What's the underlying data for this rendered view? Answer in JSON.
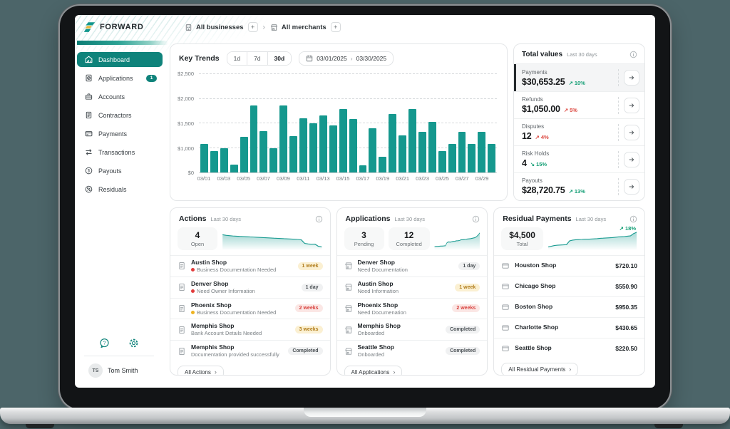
{
  "window": {
    "background": "#4c6569"
  },
  "brand": {
    "name": "FORWARD"
  },
  "breadcrumb": {
    "businesses": "All businesses",
    "merchants": "All merchants",
    "add": "+",
    "separator": "›"
  },
  "sidebar": {
    "items": [
      {
        "label": "Dashboard"
      },
      {
        "label": "Applications",
        "badge": "1"
      },
      {
        "label": "Accounts"
      },
      {
        "label": "Contractors"
      },
      {
        "label": "Payments"
      },
      {
        "label": "Transactions"
      },
      {
        "label": "Payouts"
      },
      {
        "label": "Residuals"
      }
    ],
    "user": {
      "initials": "TS",
      "name": "Tom Smith"
    }
  },
  "key_trends": {
    "title": "Key Trends",
    "range_options": [
      "1d",
      "7d",
      "30d"
    ],
    "active_range": "30d",
    "date_from": "03/01/2025",
    "date_separator": "›",
    "date_to": "03/30/2025"
  },
  "chart_data": {
    "type": "bar",
    "title": "Key Trends",
    "x": [
      "03/01",
      "03/02",
      "03/03",
      "03/04",
      "03/05",
      "03/06",
      "03/07",
      "03/08",
      "03/09",
      "03/10",
      "03/11",
      "03/12",
      "03/13",
      "03/14",
      "03/15",
      "03/16",
      "03/17",
      "03/18",
      "03/19",
      "03/20",
      "03/21",
      "03/22",
      "03/23",
      "03/24",
      "03/25",
      "03/26",
      "03/27",
      "03/28",
      "03/29",
      "03/30"
    ],
    "values": [
      1085,
      890,
      1000,
      320,
      1240,
      1860,
      1350,
      1000,
      1860,
      1250,
      1610,
      1500,
      1660,
      1460,
      1790,
      1600,
      300,
      1400,
      660,
      1690,
      1260,
      1800,
      1330,
      1530,
      890,
      1090,
      1330,
      1090,
      1330,
      1090
    ],
    "ylim": [
      0,
      2500
    ],
    "yticks": [
      {
        "label": "$0",
        "value": 0,
        "pos": 0
      },
      {
        "label": "$1,000",
        "value": 1000,
        "pos": 0.245
      },
      {
        "label": "$1,500",
        "value": 1500,
        "pos": 0.497
      },
      {
        "label": "$2,000",
        "value": 2000,
        "pos": 0.748
      },
      {
        "label": "$2,500",
        "value": 2500,
        "pos": 1
      }
    ],
    "xtick_every": 2,
    "bar_color": "#15988e",
    "grid": "dashed-horizontal",
    "legend": "none"
  },
  "total_values": {
    "title": "Total values",
    "period": "Last 30 days",
    "rows": [
      {
        "label": "Payments",
        "value": "$30,653.25",
        "arrow": "↗",
        "pct": "10%",
        "tone": "green",
        "state": "selected"
      },
      {
        "label": "Refunds",
        "value": "$1,050.00",
        "arrow": "↗",
        "pct": "5%",
        "tone": "red"
      },
      {
        "label": "Disputes",
        "value": "12",
        "arrow": "↗",
        "pct": "4%",
        "tone": "red"
      },
      {
        "label": "Risk Holds",
        "value": "4",
        "arrow": "↘",
        "pct": "15%",
        "tone": "green"
      },
      {
        "label": "Payouts",
        "value": "$28,720.75",
        "arrow": "↗",
        "pct": "13%",
        "tone": "green"
      }
    ]
  },
  "actions": {
    "title": "Actions",
    "period": "Last 30 days",
    "stat": {
      "value": "4",
      "label": "Open"
    },
    "sparkline": [
      78,
      75,
      73,
      71,
      70,
      69,
      68,
      67,
      66,
      65,
      64,
      63,
      62,
      61,
      60,
      59,
      58,
      57,
      56,
      55,
      54,
      53,
      52,
      50,
      30,
      27,
      25,
      26,
      14,
      10
    ],
    "items": [
      {
        "title": "Austin Shop",
        "subtitle": "Business Documentation Needed",
        "dot": "red",
        "badge": "1 week",
        "badge_tone": "amber"
      },
      {
        "title": "Denver Shop",
        "subtitle": "Need Owner Information",
        "dot": "red",
        "badge": "1 day",
        "badge_tone": "gray"
      },
      {
        "title": "Phoenix Shop",
        "subtitle": "Business Documentation Needed",
        "dot": "amber",
        "badge": "2 weeks",
        "badge_tone": "rose"
      },
      {
        "title": "Memphis Shop",
        "subtitle": "Bank Account Details Needed",
        "badge": "3 weeks",
        "badge_tone": "amber"
      },
      {
        "title": "Memphis Shop",
        "subtitle": "Documentation provided successfully",
        "badge": "Completed",
        "badge_tone": "gray"
      }
    ],
    "footer": "All Actions",
    "footer_chevron": "›"
  },
  "applications": {
    "title": "Applications",
    "period": "Last 30 days",
    "stats": [
      {
        "value": "3",
        "label": "Pending"
      },
      {
        "value": "12",
        "label": "Completed"
      }
    ],
    "sparkline": [
      12,
      13,
      13,
      14,
      15,
      15,
      16,
      17,
      34,
      38,
      37,
      39,
      41,
      42,
      44,
      45,
      46,
      50,
      50,
      51,
      52,
      54,
      55,
      56,
      58,
      60,
      62,
      68,
      76,
      88
    ],
    "items": [
      {
        "title": "Denver Shop",
        "subtitle": "Need Documentation",
        "badge": "1 day",
        "badge_tone": "gray"
      },
      {
        "title": "Austin Shop",
        "subtitle": "Need Information",
        "badge": "1 week",
        "badge_tone": "amber"
      },
      {
        "title": "Phoenix Shop",
        "subtitle": "Need Documenation",
        "badge": "2 weeks",
        "badge_tone": "rose"
      },
      {
        "title": "Memphis Shop",
        "subtitle": "Onboarded",
        "badge": "Completed",
        "badge_tone": "gray"
      },
      {
        "title": "Seattle Shop",
        "subtitle": "Onboarded",
        "badge": "Completed",
        "badge_tone": "gray"
      }
    ],
    "footer": "All Applications",
    "footer_chevron": "›"
  },
  "residual_payments": {
    "title": "Residual Payments",
    "period": "Last 30 days",
    "stat": {
      "value": "$4,500",
      "label": "Total"
    },
    "trend": {
      "arrow": "↗",
      "pct": "18%",
      "tone": "green"
    },
    "sparkline": [
      10,
      14,
      18,
      20,
      21,
      22,
      23,
      44,
      48,
      50,
      51,
      52,
      53,
      53,
      54,
      55,
      56,
      58,
      59,
      60,
      61,
      62,
      64,
      66,
      67,
      68,
      70,
      72,
      84,
      92
    ],
    "items": [
      {
        "title": "Houston Shop",
        "amount": "$720.10"
      },
      {
        "title": "Chicago Shop",
        "amount": "$550.90"
      },
      {
        "title": "Boston Shop",
        "amount": "$950.35"
      },
      {
        "title": "Charlotte Shop",
        "amount": "$430.65"
      },
      {
        "title": "Seattle Shop",
        "amount": "$220.50"
      }
    ],
    "footer": "All Residual Payments",
    "footer_chevron": "›"
  }
}
